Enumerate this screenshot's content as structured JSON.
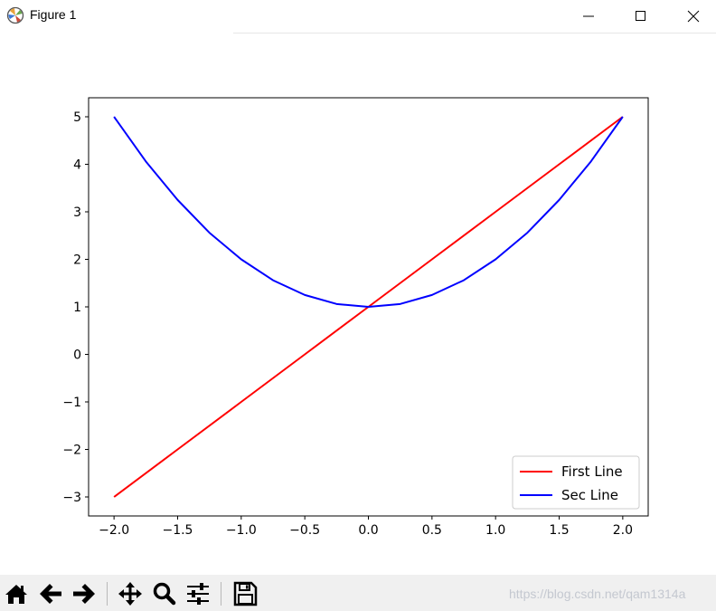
{
  "window": {
    "title": "Figure 1",
    "minimize_glyph": "minimize-icon",
    "maximize_glyph": "maximize-icon",
    "close_glyph": "close-icon"
  },
  "chart_data": {
    "type": "line",
    "title": "",
    "xlabel": "",
    "ylabel": "",
    "xlim": [
      -2.2,
      2.2
    ],
    "ylim": [
      -3.4,
      5.4
    ],
    "x_ticks": [
      -2.0,
      -1.5,
      -1.0,
      -0.5,
      0.0,
      0.5,
      1.0,
      1.5,
      2.0
    ],
    "x_tick_labels": [
      "−2.0",
      "−1.5",
      "−1.0",
      "−0.5",
      "0.0",
      "0.5",
      "1.0",
      "1.5",
      "2.0"
    ],
    "y_ticks": [
      -3,
      -2,
      -1,
      0,
      1,
      2,
      3,
      4,
      5
    ],
    "y_tick_labels": [
      "−3",
      "−2",
      "−1",
      "0",
      "1",
      "2",
      "3",
      "4",
      "5"
    ],
    "grid": false,
    "legend_position": "lower-right",
    "series": [
      {
        "name": "First Line",
        "color": "#ff0000",
        "x": [
          -2.0,
          -1.5,
          -1.0,
          -0.5,
          0.0,
          0.5,
          1.0,
          1.5,
          2.0
        ],
        "y": [
          -3.0,
          -2.0,
          -1.0,
          0.0,
          1.0,
          2.0,
          3.0,
          4.0,
          5.0
        ]
      },
      {
        "name": "Sec Line",
        "color": "#0000ff",
        "x": [
          -2.0,
          -1.75,
          -1.5,
          -1.25,
          -1.0,
          -0.75,
          -0.5,
          -0.25,
          0.0,
          0.25,
          0.5,
          0.75,
          1.0,
          1.25,
          1.5,
          1.75,
          2.0
        ],
        "y": [
          5.0,
          4.06,
          3.25,
          2.56,
          2.0,
          1.56,
          1.25,
          1.06,
          1.0,
          1.06,
          1.25,
          1.56,
          2.0,
          2.56,
          3.25,
          4.06,
          5.0
        ]
      }
    ]
  },
  "toolbar": {
    "buttons": [
      {
        "name": "home-button",
        "icon": "home-icon"
      },
      {
        "name": "back-button",
        "icon": "arrow-left-icon"
      },
      {
        "name": "forward-button",
        "icon": "arrow-right-icon"
      },
      {
        "name": "pan-button",
        "icon": "move-icon"
      },
      {
        "name": "zoom-button",
        "icon": "magnifier-icon"
      },
      {
        "name": "subplots-button",
        "icon": "sliders-icon"
      },
      {
        "name": "save-button",
        "icon": "floppy-disk-icon"
      }
    ],
    "watermark": "https://blog.csdn.net/qam1314a"
  }
}
